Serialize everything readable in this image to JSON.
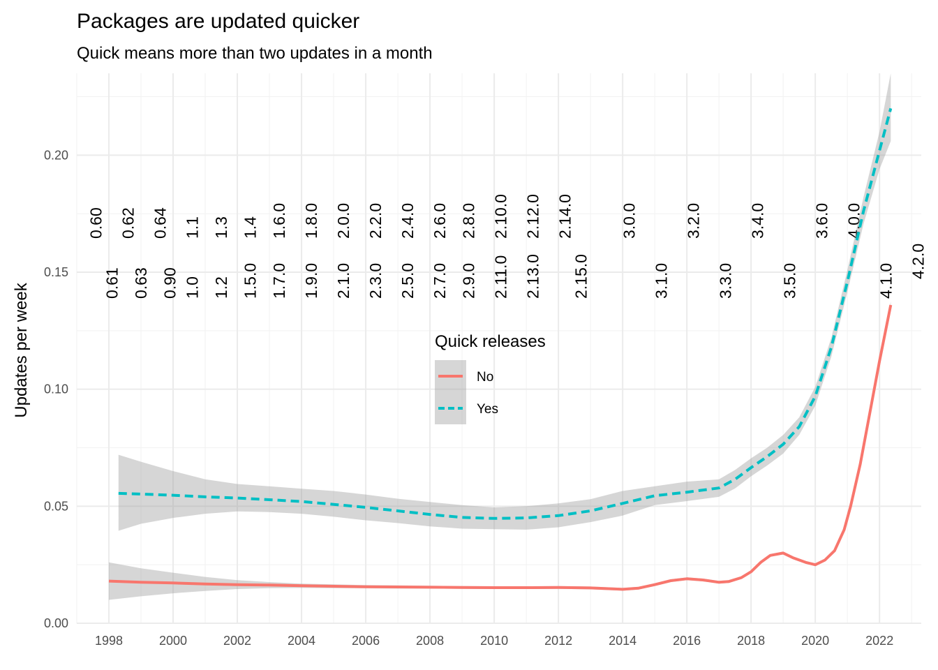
{
  "chart_data": {
    "type": "line",
    "title": "Packages are updated quicker",
    "subtitle": "Quick means more than two updates in a month",
    "xlabel": "",
    "ylabel": "Updates per week",
    "xlim": [
      1997.0,
      2023.3
    ],
    "ylim": [
      0,
      0.235
    ],
    "x_ticks": [
      1998,
      2000,
      2002,
      2004,
      2006,
      2008,
      2010,
      2012,
      2014,
      2016,
      2018,
      2020,
      2022
    ],
    "x_tick_labels": [
      "1998",
      "2000",
      "2002",
      "2004",
      "2006",
      "2008",
      "2010",
      "2012",
      "2014",
      "2016",
      "2018",
      "2020",
      "2022"
    ],
    "y_ticks": [
      0,
      0.05,
      0.1,
      0.15,
      0.2
    ],
    "y_tick_labels": [
      "0.00",
      "0.05",
      "0.10",
      "0.15",
      "0.20"
    ],
    "grid": true,
    "legend": {
      "title": "Quick releases",
      "position": "center",
      "entries": [
        {
          "label": "No",
          "color": "#F8766D",
          "linetype": "solid"
        },
        {
          "label": "Yes",
          "color": "#00BFC4",
          "linetype": "dashed"
        }
      ]
    },
    "series": [
      {
        "name": "No",
        "color": "#F8766D",
        "linetype": "solid",
        "x": [
          1998.0,
          1999.0,
          2000.0,
          2001.0,
          2002.0,
          2003.0,
          2004.0,
          2005.0,
          2006.0,
          2007.0,
          2008.0,
          2009.0,
          2010.0,
          2011.0,
          2012.0,
          2013.0,
          2013.5,
          2014.0,
          2014.5,
          2015.0,
          2015.5,
          2016.0,
          2016.5,
          2017.0,
          2017.3,
          2017.7,
          2018.0,
          2018.3,
          2018.6,
          2019.0,
          2019.3,
          2019.7,
          2020.0,
          2020.3,
          2020.6,
          2020.9,
          2021.1,
          2021.4,
          2021.7,
          2022.0,
          2022.35
        ],
        "y": [
          0.018,
          0.0175,
          0.0172,
          0.0168,
          0.0165,
          0.0163,
          0.016,
          0.0158,
          0.0156,
          0.0155,
          0.0154,
          0.0153,
          0.0152,
          0.0152,
          0.0153,
          0.0151,
          0.0148,
          0.0145,
          0.015,
          0.0165,
          0.0182,
          0.019,
          0.0185,
          0.0175,
          0.0178,
          0.0195,
          0.022,
          0.026,
          0.029,
          0.03,
          0.028,
          0.026,
          0.025,
          0.027,
          0.031,
          0.04,
          0.05,
          0.068,
          0.09,
          0.112,
          0.136
        ],
        "ci_lower": [
          0.01,
          0.0115,
          0.0128,
          0.0138,
          0.0146,
          0.015,
          0.0151,
          0.015,
          0.0149,
          0.0148,
          0.0148,
          0.0147,
          0.0146,
          0.0146,
          0.0147,
          0.0145,
          0.0142,
          0.0139,
          0.0144,
          0.0159,
          0.0176,
          0.0184,
          0.0179,
          0.0169,
          0.0172,
          0.0189,
          0.0214,
          0.0254,
          0.0284,
          0.0294,
          0.0274,
          0.0254,
          0.0244,
          0.0264,
          0.0304,
          0.0394,
          0.0494,
          0.0674,
          0.0894,
          0.1114,
          0.1345
        ],
        "ci_upper": [
          0.026,
          0.0235,
          0.0216,
          0.0198,
          0.0184,
          0.0176,
          0.0169,
          0.0166,
          0.0163,
          0.0162,
          0.016,
          0.0159,
          0.0158,
          0.0158,
          0.0159,
          0.0157,
          0.0154,
          0.0151,
          0.0156,
          0.0171,
          0.0188,
          0.0196,
          0.0191,
          0.0181,
          0.0184,
          0.0201,
          0.0226,
          0.0266,
          0.0296,
          0.0306,
          0.0286,
          0.0266,
          0.0256,
          0.0276,
          0.0316,
          0.0406,
          0.0506,
          0.0686,
          0.0906,
          0.1126,
          0.1375
        ]
      },
      {
        "name": "Yes",
        "color": "#00BFC4",
        "linetype": "dashed",
        "x": [
          1998.3,
          1999.0,
          2000.0,
          2001.0,
          2002.0,
          2003.0,
          2004.0,
          2005.0,
          2006.0,
          2007.0,
          2008.0,
          2009.0,
          2010.0,
          2011.0,
          2012.0,
          2013.0,
          2014.0,
          2015.0,
          2016.0,
          2017.0,
          2017.5,
          2018.0,
          2018.5,
          2019.0,
          2019.5,
          2020.0,
          2020.5,
          2021.0,
          2021.5,
          2022.0,
          2022.35
        ],
        "y": [
          0.0555,
          0.0552,
          0.0547,
          0.054,
          0.0535,
          0.0528,
          0.052,
          0.0508,
          0.0495,
          0.048,
          0.0465,
          0.0452,
          0.0448,
          0.045,
          0.046,
          0.048,
          0.0512,
          0.0545,
          0.056,
          0.0578,
          0.0615,
          0.0665,
          0.0712,
          0.0765,
          0.084,
          0.097,
          0.118,
          0.146,
          0.176,
          0.202,
          0.22
        ],
        "ci_lower": [
          0.0395,
          0.0425,
          0.045,
          0.0468,
          0.0478,
          0.0475,
          0.0468,
          0.0455,
          0.044,
          0.0428,
          0.0414,
          0.0404,
          0.0402,
          0.04,
          0.041,
          0.0432,
          0.046,
          0.0505,
          0.0522,
          0.054,
          0.0576,
          0.0628,
          0.0674,
          0.0725,
          0.0805,
          0.093,
          0.114,
          0.1415,
          0.1705,
          0.194,
          0.206
        ],
        "ci_upper": [
          0.072,
          0.069,
          0.065,
          0.0615,
          0.0595,
          0.0585,
          0.0575,
          0.0565,
          0.055,
          0.0532,
          0.0518,
          0.0505,
          0.0495,
          0.05,
          0.0512,
          0.053,
          0.0565,
          0.0585,
          0.0605,
          0.0615,
          0.0655,
          0.0705,
          0.075,
          0.0805,
          0.088,
          0.101,
          0.122,
          0.151,
          0.182,
          0.21,
          0.235
        ]
      }
    ],
    "annotations": [
      {
        "label": "0.60",
        "x": 1997.6,
        "row": 1
      },
      {
        "label": "0.61",
        "x": 1998.1,
        "row": 2
      },
      {
        "label": "0.62",
        "x": 1998.6,
        "row": 1
      },
      {
        "label": "0.63",
        "x": 1999.0,
        "row": 2
      },
      {
        "label": "0.64",
        "x": 1999.6,
        "row": 1
      },
      {
        "label": "0.90",
        "x": 1999.9,
        "row": 2
      },
      {
        "label": "1.0",
        "x": 2000.6,
        "row": 2
      },
      {
        "label": "1.1",
        "x": 2000.6,
        "row": 1
      },
      {
        "label": "1.2",
        "x": 2001.5,
        "row": 2
      },
      {
        "label": "1.3",
        "x": 2001.5,
        "row": 1
      },
      {
        "label": "1.4",
        "x": 2002.4,
        "row": 1
      },
      {
        "label": "1.5.0",
        "x": 2002.4,
        "row": 2
      },
      {
        "label": "1.6.0",
        "x": 2003.3,
        "row": 1
      },
      {
        "label": "1.7.0",
        "x": 2003.3,
        "row": 2
      },
      {
        "label": "1.8.0",
        "x": 2004.3,
        "row": 1
      },
      {
        "label": "1.9.0",
        "x": 2004.3,
        "row": 2
      },
      {
        "label": "2.0.0",
        "x": 2005.3,
        "row": 1
      },
      {
        "label": "2.1.0",
        "x": 2005.3,
        "row": 2
      },
      {
        "label": "2.2.0",
        "x": 2006.3,
        "row": 1
      },
      {
        "label": "2.3.0",
        "x": 2006.3,
        "row": 2
      },
      {
        "label": "2.4.0",
        "x": 2007.3,
        "row": 1
      },
      {
        "label": "2.5.0",
        "x": 2007.3,
        "row": 2
      },
      {
        "label": "2.6.0",
        "x": 2008.3,
        "row": 1
      },
      {
        "label": "2.7.0",
        "x": 2008.3,
        "row": 2
      },
      {
        "label": "2.8.0",
        "x": 2009.2,
        "row": 1
      },
      {
        "label": "2.9.0",
        "x": 2009.2,
        "row": 2
      },
      {
        "label": "2.10.0",
        "x": 2010.2,
        "row": 1
      },
      {
        "label": "2.11.0",
        "x": 2010.2,
        "row": 2
      },
      {
        "label": "2.12.0",
        "x": 2011.2,
        "row": 1
      },
      {
        "label": "2.13.0",
        "x": 2011.2,
        "row": 2
      },
      {
        "label": "2.14.0",
        "x": 2012.2,
        "row": 1
      },
      {
        "label": "2.15.0",
        "x": 2012.7,
        "row": 2
      },
      {
        "label": "3.0.0",
        "x": 2014.2,
        "row": 1
      },
      {
        "label": "3.1.0",
        "x": 2015.2,
        "row": 2
      },
      {
        "label": "3.2.0",
        "x": 2016.2,
        "row": 1
      },
      {
        "label": "3.3.0",
        "x": 2017.2,
        "row": 2
      },
      {
        "label": "3.4.0",
        "x": 2018.2,
        "row": 1
      },
      {
        "label": "3.5.0",
        "x": 2019.2,
        "row": 2
      },
      {
        "label": "3.6.0",
        "x": 2020.2,
        "row": 1
      },
      {
        "label": "4.0.0",
        "x": 2021.2,
        "row": 1
      },
      {
        "label": "4.1.0",
        "x": 2022.2,
        "row": 2
      },
      {
        "label": "4.2.0",
        "x": 2023.2,
        "row": 3
      }
    ]
  }
}
